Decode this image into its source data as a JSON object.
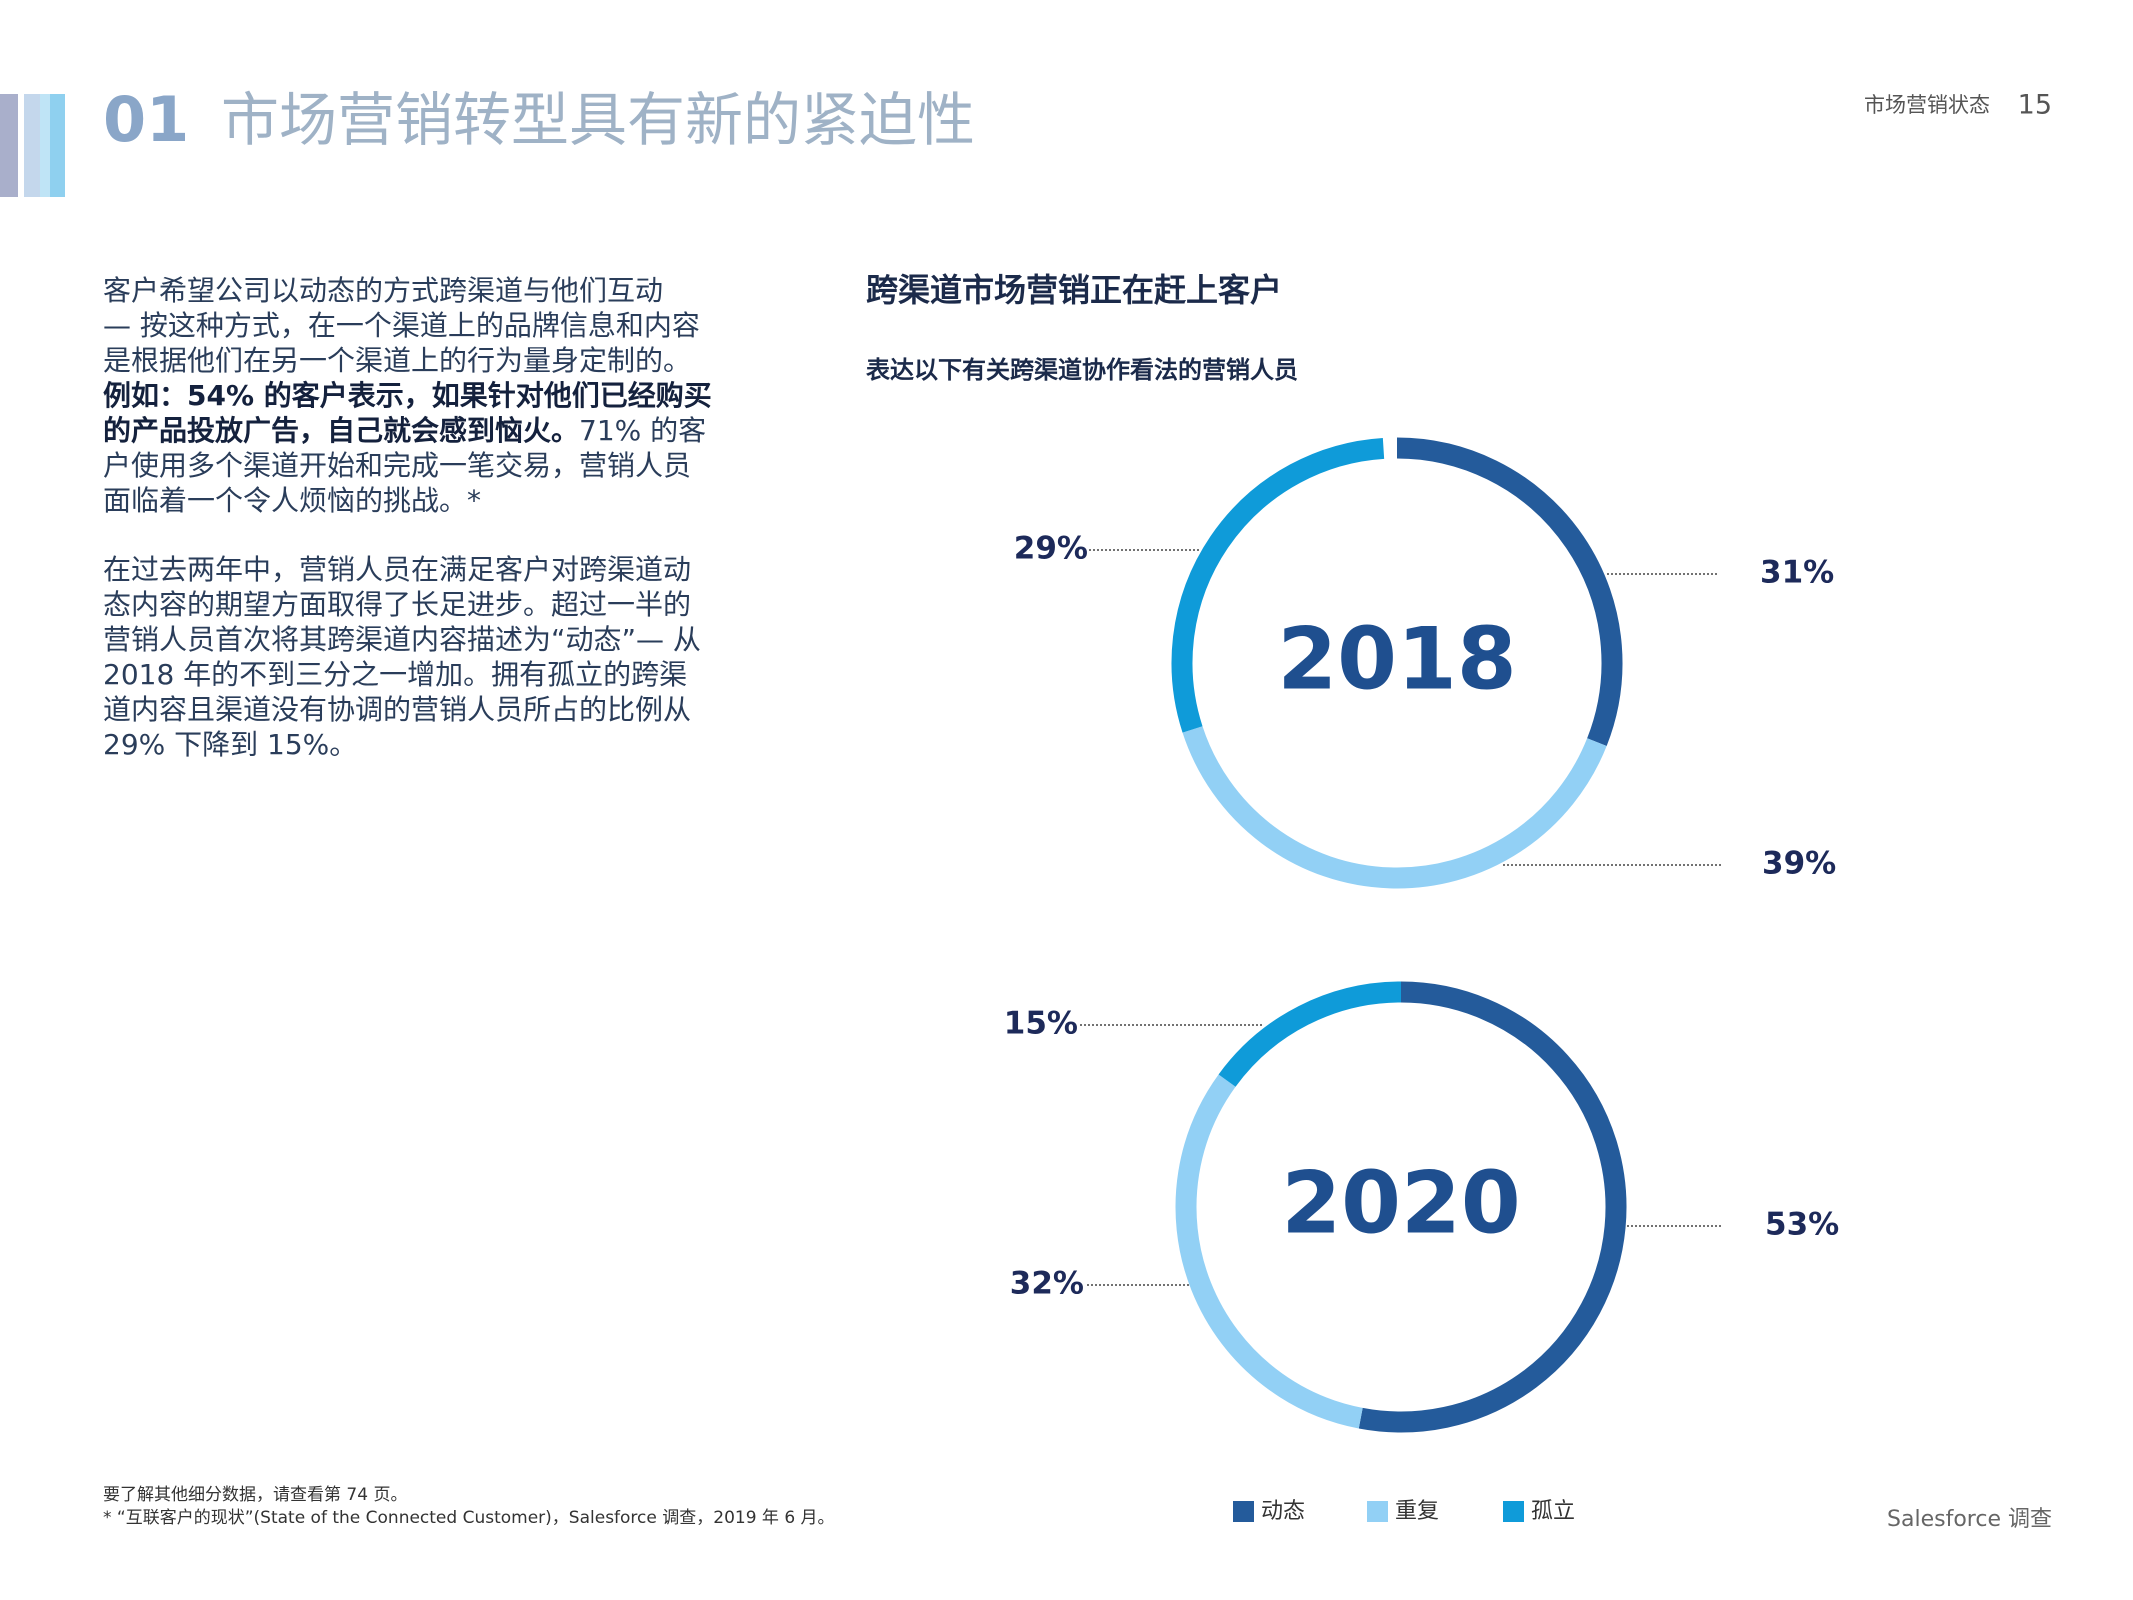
{
  "header": {
    "number": "01",
    "title": "市场营销转型具有新的紧迫性",
    "section": "市场营销状态",
    "page": "15"
  },
  "body": {
    "paragraphs": [
      [
        [
          {
            "text": "客户希望公司以动态的方式跨渠道与他们互动",
            "bold": false
          }
        ],
        [
          {
            "text": "— 按这种方式，在一个渠道上的品牌信息和内容",
            "bold": false
          }
        ],
        [
          {
            "text": "是根据他们在另一个渠道上的行为量身定制的。",
            "bold": false
          }
        ],
        [
          {
            "text": "例如：54% 的客户表示，如果针对他们已经购买",
            "bold": true
          }
        ],
        [
          {
            "text": "的产品投放广告，自己就会感到恼火。",
            "bold": true
          },
          {
            "text": "71% 的客",
            "bold": false
          }
        ],
        [
          {
            "text": "户使用多个渠道开始和完成一笔交易，营销人员",
            "bold": false
          }
        ],
        [
          {
            "text": "面临着一个令人烦恼的挑战。*",
            "bold": false
          }
        ]
      ],
      [
        [
          {
            "text": "在过去两年中，营销人员在满足客户对跨渠道动",
            "bold": false
          }
        ],
        [
          {
            "text": "态内容的期望方面取得了长足进步。超过一半的",
            "bold": false
          }
        ],
        [
          {
            "text": "营销人员首次将其跨渠道内容描述为“动态”— 从",
            "bold": false
          }
        ],
        [
          {
            "text": "2018 年的不到三分之一增加。拥有孤立的跨渠",
            "bold": false
          }
        ],
        [
          {
            "text": "道内容且渠道没有协调的营销人员所占的比例从",
            "bold": false
          }
        ],
        [
          {
            "text": "29% 下降到 15%。",
            "bold": false
          }
        ]
      ]
    ]
  },
  "figure": {
    "title": "跨渠道市场营销正在赶上客户",
    "subtitle": "表达以下有关跨渠道协作看法的营销人员"
  },
  "chart_data": [
    {
      "type": "pie",
      "center_label": "2018",
      "categories": [
        "动态",
        "重复",
        "孤立"
      ],
      "values": [
        31,
        39,
        29
      ],
      "value_labels": [
        "31%",
        "39%",
        "29%"
      ],
      "colors": [
        "#245b9b",
        "#92d0f5",
        "#0f9bd9"
      ]
    },
    {
      "type": "pie",
      "center_label": "2020",
      "categories": [
        "动态",
        "重复",
        "孤立"
      ],
      "values": [
        53,
        32,
        15
      ],
      "value_labels": [
        "53%",
        "32%",
        "15%"
      ],
      "colors": [
        "#245b9b",
        "#92d0f5",
        "#0f9bd9"
      ]
    }
  ],
  "footer": {
    "notes": [
      "要了解其他细分数据，请查看第 74 页。",
      "* “互联客户的现状”(State of the Connected Customer)，Salesforce 调查，2019 年 6 月。"
    ],
    "source": "Salesforce 调查"
  }
}
